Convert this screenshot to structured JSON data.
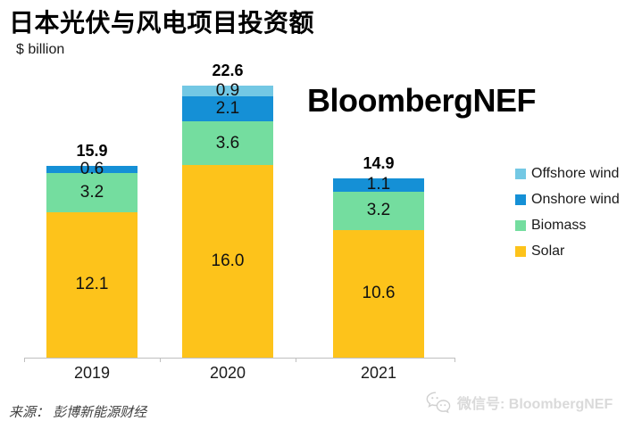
{
  "header": {
    "title": "日本光伏与风电项目投资额",
    "unit_label": "$ billion"
  },
  "watermark": {
    "brand": "BloombergNEF"
  },
  "footer": {
    "source": "来源： 彭博新能源财经",
    "wechat_label": "微信号: BloombergNEF",
    "wechat_icon": "wechat-icon"
  },
  "colors": {
    "solar": "#FDC31B",
    "biomass": "#74DD9F",
    "onshore_wind": "#1590D6",
    "offshore_wind": "#73C8E4",
    "axis": "#BFBFBF",
    "watermark_gray": "#D9D9D9"
  },
  "chart_data": {
    "type": "bar",
    "stacked": true,
    "title": "日本光伏与风电项目投资额",
    "xlabel": "",
    "ylabel": "$ billion",
    "categories": [
      "2019",
      "2020",
      "2021"
    ],
    "series": [
      {
        "name": "Solar",
        "color": "#FDC31B",
        "values": [
          12.1,
          16.0,
          10.6
        ]
      },
      {
        "name": "Biomass",
        "color": "#74DD9F",
        "values": [
          3.2,
          3.6,
          3.2
        ]
      },
      {
        "name": "Onshore wind",
        "color": "#1590D6",
        "values": [
          0.6,
          2.1,
          1.1
        ]
      },
      {
        "name": "Offshore wind",
        "color": "#73C8E4",
        "values": [
          0,
          0.9,
          0
        ]
      }
    ],
    "totals": [
      15.9,
      22.6,
      14.9
    ],
    "ylim": [
      0,
      24
    ],
    "grid": false,
    "legend_position": "right",
    "legend_order": [
      "Offshore wind",
      "Onshore wind",
      "Biomass",
      "Solar"
    ]
  }
}
